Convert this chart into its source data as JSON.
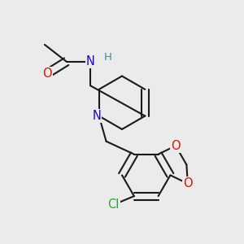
{
  "bg_color": "#ebebeb",
  "bond_color": "#1a1a1a",
  "bond_width": 1.5,
  "atom_colors": {
    "O": "#dd1100",
    "N": "#2200cc",
    "H": "#4a8a8a",
    "Cl": "#22aa22",
    "C": "#1a1a1a"
  },
  "font_size_atom": 10.5,
  "font_size_H": 9.5,
  "xlim": [
    0,
    10
  ],
  "ylim": [
    0,
    10
  ]
}
